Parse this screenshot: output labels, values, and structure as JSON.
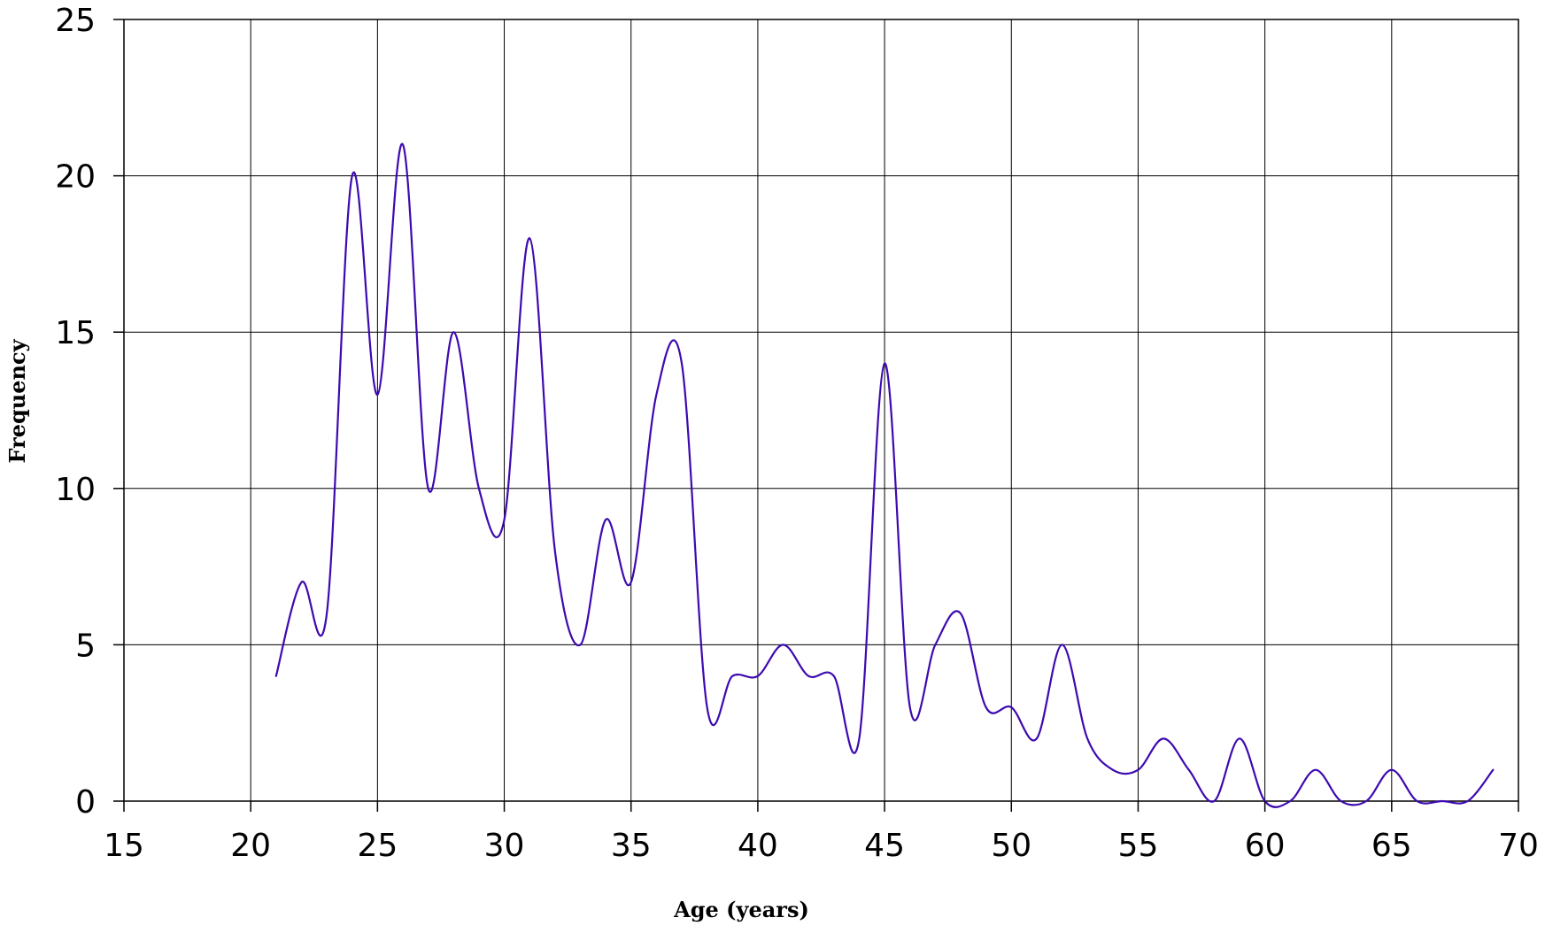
{
  "chart_data": {
    "type": "line",
    "xlabel": "Age (years)",
    "ylabel": "Frequency",
    "xlim": [
      15,
      70
    ],
    "ylim": [
      0,
      25
    ],
    "x_ticks": [
      15,
      20,
      25,
      30,
      35,
      40,
      45,
      50,
      55,
      60,
      65,
      70
    ],
    "y_ticks": [
      0,
      5,
      10,
      15,
      20,
      25
    ],
    "grid": true,
    "smooth": true,
    "series": [
      {
        "color": "#3d0ab0",
        "x": [
          21,
          22,
          23,
          24,
          25,
          26,
          27,
          28,
          29,
          30,
          31,
          32,
          33,
          34,
          35,
          36,
          37,
          38,
          39,
          40,
          41,
          42,
          43,
          44,
          45,
          46,
          47,
          48,
          49,
          50,
          51,
          52,
          53,
          54,
          55,
          56,
          57,
          58,
          59,
          60,
          61,
          62,
          63,
          64,
          65,
          66,
          67,
          68,
          69
        ],
        "values": [
          4,
          7,
          6,
          20,
          13,
          21,
          10,
          15,
          10,
          9,
          18,
          8,
          5,
          9,
          7,
          13,
          14,
          3,
          4,
          4,
          5,
          4,
          4,
          2,
          14,
          3,
          5,
          6,
          3,
          3,
          2,
          5,
          2,
          1,
          1,
          2,
          1,
          0,
          2,
          0,
          0,
          1,
          0,
          0,
          1,
          0,
          0,
          0,
          1
        ]
      }
    ]
  }
}
